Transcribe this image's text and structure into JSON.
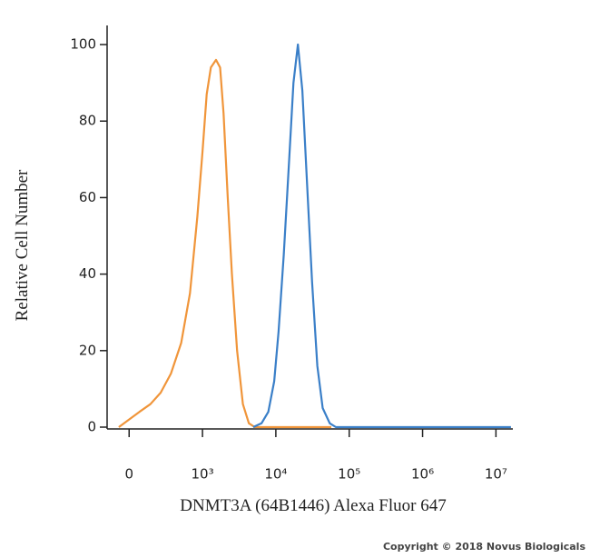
{
  "chart_data": {
    "type": "line",
    "xlabel": "DNMT3A (64B1446) Alexa Fluor 647",
    "ylabel": "Relative Cell Number",
    "annotations": [
      "Copyright © 2018 Novus Biologicals"
    ],
    "xscale": "biexponential",
    "xlim": [
      -300,
      17000000
    ],
    "xticks": [
      0,
      {
        "value": 1000,
        "label": "10³"
      },
      {
        "value": 10000,
        "label": "10⁴"
      },
      {
        "value": 100000,
        "label": "10⁵"
      },
      {
        "value": 1000000,
        "label": "10⁶"
      },
      {
        "value": 10000000,
        "label": "10⁷"
      }
    ],
    "ylim": [
      0,
      105
    ],
    "yticks": [
      0,
      20,
      40,
      60,
      80,
      100
    ],
    "series": [
      {
        "color": "#f0953a",
        "x": [
          -140,
          0,
          140,
          290,
          430,
          570,
          710,
          830,
          930,
          1000,
          1140,
          1300,
          1530,
          1740,
          1940,
          2210,
          2520,
          2960,
          3560,
          4290,
          5160,
          57000
        ],
        "values": [
          0,
          2,
          4,
          6,
          9,
          14,
          22,
          35,
          55,
          72,
          87,
          94,
          96,
          94,
          82,
          60,
          40,
          20,
          6,
          1,
          0,
          0
        ]
      },
      {
        "color": "#3a7fc8",
        "x": [
          4900,
          6380,
          7890,
          9490,
          10900,
          12800,
          15200,
          17400,
          20000,
          23000,
          26400,
          31200,
          36800,
          43500,
          54300,
          65900,
          16000000
        ],
        "values": [
          0,
          1,
          4,
          12,
          25,
          45,
          70,
          90,
          100,
          88,
          65,
          38,
          16,
          5,
          1,
          0,
          0
        ]
      }
    ]
  }
}
